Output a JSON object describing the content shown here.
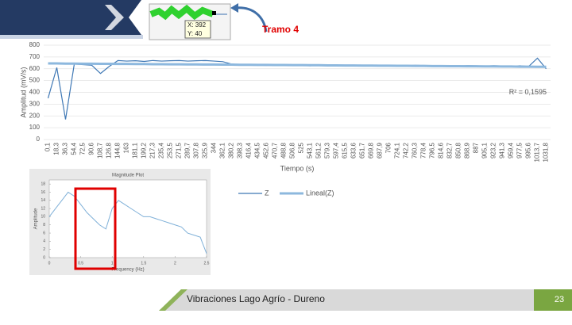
{
  "header": {
    "inset_x": "X: 392",
    "inset_y": "Y: 40",
    "annotation": "Tramo 4"
  },
  "chart_data": [
    {
      "type": "line",
      "y_label": "Amplitud (mV/s)",
      "x_label": "Tiempo (s)",
      "annotation": "R² = 0,1595",
      "categories": [
        "0,1",
        "18,3",
        "36,3",
        "54,4",
        "72,5",
        "90,6",
        "108,7",
        "126,8",
        "144,8",
        "163",
        "181,1",
        "199,2",
        "217,3",
        "235,4",
        "253,5",
        "271,5",
        "289,7",
        "307,8",
        "325,9",
        "344",
        "362,1",
        "380,2",
        "398,3",
        "416,4",
        "434,5",
        "452,6",
        "470,7",
        "488,8",
        "506,8",
        "525",
        "543,1",
        "561,2",
        "579,3",
        "597,4",
        "615,5",
        "633,6",
        "651,7",
        "669,8",
        "687,9",
        "706",
        "724,1",
        "742,2",
        "760,3",
        "778,4",
        "796,5",
        "814,6",
        "832,7",
        "850,8",
        "868,9",
        "887",
        "905,1",
        "923,2",
        "941,3",
        "959,4",
        "977,5",
        "995,6",
        "1013,7",
        "1031,8"
      ],
      "series": [
        {
          "name": "Z",
          "color": "#3f78b5",
          "width": 1.2,
          "values": [
            350,
            610,
            170,
            640,
            635,
            630,
            560,
            620,
            670,
            665,
            668,
            662,
            670,
            665,
            668,
            670,
            665,
            668,
            670,
            665,
            660,
            640,
            635,
            632,
            630,
            628,
            635,
            630,
            632,
            628,
            625,
            630,
            628,
            632,
            630,
            625,
            628,
            630,
            627,
            626,
            628,
            625,
            630,
            627,
            625,
            628,
            626,
            624,
            627,
            625,
            623,
            626,
            624,
            622,
            625,
            620,
            690,
            600
          ]
        },
        {
          "name": "Lineal(Z)",
          "color": "#8db8de",
          "width": 3,
          "values": [
            645,
            645,
            644,
            644,
            643,
            643,
            642,
            642,
            641,
            641,
            640,
            640,
            639,
            639,
            638,
            638,
            637,
            637,
            636,
            636,
            635,
            635,
            634,
            634,
            633,
            633,
            632,
            632,
            631,
            631,
            630,
            630,
            629,
            629,
            628,
            628,
            627,
            627,
            626,
            626,
            625,
            625,
            624,
            624,
            623,
            623,
            622,
            622,
            621,
            621,
            620,
            620,
            619,
            619,
            618,
            618,
            617,
            617
          ]
        }
      ],
      "ylim": [
        0,
        800
      ],
      "yticks": [
        0,
        100,
        200,
        300,
        400,
        500,
        600,
        700,
        800
      ],
      "grid": true,
      "legend": "bottom"
    },
    {
      "type": "line",
      "title": "Magnitude Plot",
      "x_label": "Frequency (Hz)",
      "y_label": "Amplitude",
      "x": [
        0,
        0.1,
        0.2,
        0.3,
        0.4,
        0.5,
        0.6,
        0.7,
        0.8,
        0.9,
        1,
        1.1,
        1.2,
        1.3,
        1.4,
        1.5,
        1.6,
        1.7,
        1.8,
        1.9,
        2,
        2.1,
        2.2,
        2.3,
        2.4,
        2.5
      ],
      "series": [
        {
          "color": "#7fb0d8",
          "width": 1,
          "values": [
            10,
            12,
            14,
            16,
            15,
            13,
            11,
            9.5,
            8,
            7,
            12,
            14,
            13,
            12,
            11,
            10,
            10,
            9.5,
            9,
            8.5,
            8,
            7.5,
            6,
            5.5,
            5,
            1
          ]
        }
      ],
      "xlim": [
        0,
        2.5
      ],
      "xticks": [
        0,
        0.5,
        1,
        1.5,
        2,
        2.5
      ],
      "ylim": [
        0,
        19
      ],
      "yticks": [
        0,
        2,
        4,
        6,
        8,
        10,
        12,
        14,
        16,
        18
      ],
      "grid": false
    }
  ],
  "footer": {
    "title": "Vibraciones Lago Agrío - Dureno",
    "page": "23"
  }
}
